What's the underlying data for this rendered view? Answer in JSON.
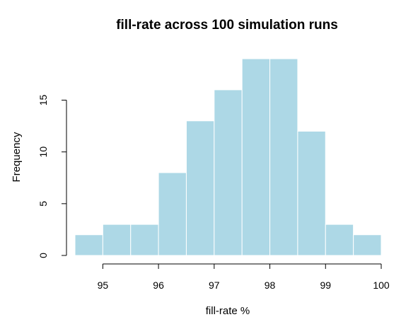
{
  "chart_data": {
    "type": "bar",
    "title": "fill-rate across 100 simulation runs",
    "xlabel": "fill-rate %",
    "ylabel": "Frequency",
    "bins": [
      {
        "start": 94.5,
        "end": 95.0,
        "count": 2
      },
      {
        "start": 95.0,
        "end": 95.5,
        "count": 3
      },
      {
        "start": 95.5,
        "end": 96.0,
        "count": 3
      },
      {
        "start": 96.0,
        "end": 96.5,
        "count": 8
      },
      {
        "start": 96.5,
        "end": 97.0,
        "count": 13
      },
      {
        "start": 97.0,
        "end": 97.5,
        "count": 16
      },
      {
        "start": 97.5,
        "end": 98.0,
        "count": 19
      },
      {
        "start": 98.0,
        "end": 98.5,
        "count": 19
      },
      {
        "start": 98.5,
        "end": 99.0,
        "count": 12
      },
      {
        "start": 99.0,
        "end": 99.5,
        "count": 3
      },
      {
        "start": 99.5,
        "end": 100.0,
        "count": 2
      }
    ],
    "x_ticks": [
      "95",
      "96",
      "97",
      "98",
      "99",
      "100"
    ],
    "y_ticks": [
      "0",
      "5",
      "10",
      "15"
    ],
    "xlim": [
      94.5,
      100
    ],
    "ylim": [
      0,
      19
    ],
    "bar_color": "#add8e6",
    "grid": false
  }
}
